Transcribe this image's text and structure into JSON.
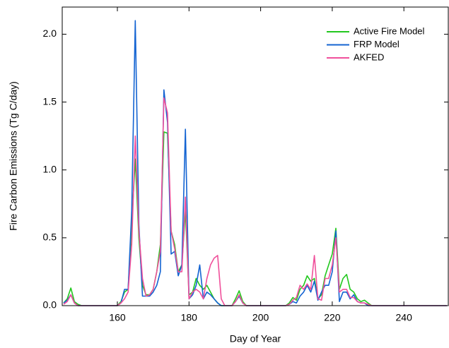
{
  "chart_data": {
    "type": "line",
    "xlabel": "Day of Year",
    "ylabel": "Fire Carbon Emissions (Tg C/day)",
    "xlim": [
      144.6,
      252.4
    ],
    "ylim": [
      0,
      2.2
    ],
    "xticks": [
      160,
      180,
      200,
      220,
      240
    ],
    "yticks": [
      {
        "value": 0,
        "label": "0.0"
      },
      0.5,
      {
        "value": 1,
        "label": "1.0"
      },
      1.5,
      {
        "value": 2,
        "label": "2.0"
      }
    ],
    "legend": "upper right",
    "x": [
      145,
      146,
      147,
      148,
      149,
      150,
      151,
      152,
      153,
      154,
      155,
      156,
      157,
      158,
      159,
      160,
      161,
      162,
      163,
      164,
      165,
      166,
      167,
      168,
      169,
      170,
      171,
      172,
      173,
      174,
      175,
      176,
      177,
      178,
      179,
      180,
      181,
      182,
      183,
      184,
      185,
      186,
      187,
      188,
      189,
      190,
      191,
      192,
      193,
      194,
      195,
      196,
      197,
      198,
      199,
      200,
      201,
      202,
      203,
      204,
      205,
      206,
      207,
      208,
      209,
      210,
      211,
      212,
      213,
      214,
      215,
      216,
      217,
      218,
      219,
      220,
      221,
      222,
      223,
      224,
      225,
      226,
      227,
      228,
      229,
      230,
      231,
      232,
      233,
      234,
      235,
      236,
      237,
      238,
      239,
      240,
      241,
      242,
      243,
      244,
      245,
      246,
      247,
      248,
      249,
      250,
      251,
      252
    ],
    "series": [
      {
        "name": "Active Fire Model",
        "color": "#22c81e",
        "values": [
          0.02,
          0.05,
          0.13,
          0.03,
          0.01,
          0,
          0,
          0,
          0,
          0,
          0,
          0,
          0,
          0,
          0,
          0,
          0.03,
          0.1,
          0.12,
          0.6,
          1.08,
          0.5,
          0.15,
          0.08,
          0.08,
          0.12,
          0.25,
          0.45,
          1.28,
          1.27,
          0.55,
          0.45,
          0.25,
          0.3,
          0.7,
          0.08,
          0.1,
          0.2,
          0.15,
          0.12,
          0.15,
          0.1,
          0.05,
          0.02,
          0,
          0,
          0,
          0,
          0.05,
          0.11,
          0.03,
          0,
          0,
          0,
          0,
          0,
          0,
          0,
          0,
          0,
          0,
          0,
          0,
          0.02,
          0.06,
          0.04,
          0.12,
          0.15,
          0.22,
          0.18,
          0.2,
          0.05,
          0.08,
          0.22,
          0.3,
          0.38,
          0.57,
          0.12,
          0.2,
          0.23,
          0.12,
          0.1,
          0.05,
          0.03,
          0.04,
          0.02,
          0,
          0,
          0,
          0,
          0,
          0,
          0,
          0,
          0,
          0,
          0,
          0,
          0,
          0,
          0,
          0,
          0,
          0,
          0,
          0,
          0,
          0
        ]
      },
      {
        "name": "FRP Model",
        "color": "#1464d2",
        "values": [
          0.02,
          0.04,
          0.08,
          0.02,
          0,
          0,
          0,
          0,
          0,
          0,
          0,
          0,
          0,
          0,
          0,
          0,
          0.02,
          0.12,
          0.12,
          0.7,
          2.1,
          0.6,
          0.07,
          0.07,
          0.07,
          0.1,
          0.15,
          0.25,
          1.59,
          1.35,
          0.38,
          0.4,
          0.22,
          0.3,
          1.3,
          0.05,
          0.08,
          0.15,
          0.3,
          0.05,
          0.1,
          0.08,
          0.05,
          0.02,
          0,
          0,
          0,
          0,
          0.03,
          0.07,
          0.02,
          0,
          0,
          0,
          0,
          0,
          0,
          0,
          0,
          0,
          0,
          0,
          0,
          0.01,
          0.03,
          0.02,
          0.07,
          0.1,
          0.15,
          0.1,
          0.18,
          0.04,
          0.1,
          0.15,
          0.15,
          0.25,
          0.55,
          0.03,
          0.1,
          0.1,
          0.05,
          0.08,
          0.03,
          0.02,
          0.02,
          0,
          0,
          0,
          0,
          0,
          0,
          0,
          0,
          0,
          0,
          0,
          0,
          0,
          0,
          0,
          0,
          0,
          0,
          0,
          0,
          0,
          0,
          0
        ]
      },
      {
        "name": "AKFED",
        "color": "#f0509b",
        "values": [
          0.01,
          0.03,
          0.08,
          0.02,
          0,
          0,
          0,
          0,
          0,
          0,
          0,
          0,
          0,
          0,
          0,
          0,
          0.02,
          0.05,
          0.1,
          0.45,
          1.25,
          0.55,
          0.2,
          0.07,
          0.08,
          0.12,
          0.25,
          0.4,
          1.53,
          1.42,
          0.55,
          0.42,
          0.25,
          0.25,
          0.8,
          0.05,
          0.1,
          0.12,
          0.1,
          0.05,
          0.2,
          0.3,
          0.35,
          0.37,
          0.05,
          0,
          0,
          0,
          0.03,
          0.08,
          0.02,
          0,
          0,
          0,
          0,
          0,
          0,
          0,
          0,
          0,
          0,
          0,
          0,
          0.01,
          0.04,
          0.06,
          0.15,
          0.12,
          0.16,
          0.12,
          0.37,
          0.05,
          0.04,
          0.2,
          0.2,
          0.3,
          0.5,
          0.1,
          0.12,
          0.12,
          0.06,
          0.06,
          0.03,
          0.02,
          0.02,
          0.01,
          0,
          0,
          0,
          0,
          0,
          0,
          0,
          0,
          0,
          0,
          0,
          0,
          0,
          0,
          0,
          0,
          0,
          0,
          0,
          0,
          0,
          0
        ]
      }
    ]
  }
}
